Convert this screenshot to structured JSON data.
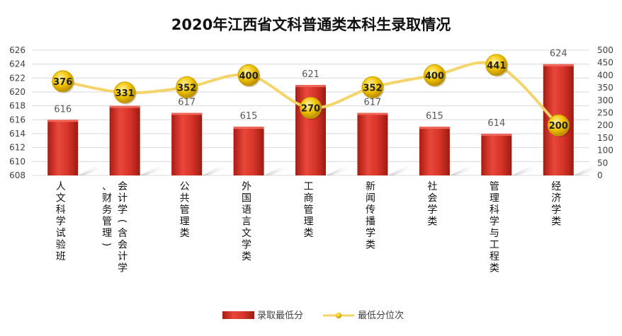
{
  "chart_data": {
    "type": "bar",
    "title": "2020年江西省文科普通类本科生录取情况",
    "categories": [
      "人文科学试验班",
      "会计学（含会计学、财务管理）",
      "公共管理类",
      "外国语言文学类",
      "工商管理类",
      "新闻传播学类",
      "社会学类",
      "管理科学与工程类",
      "经济学类"
    ],
    "series": [
      {
        "name": "录取最低分",
        "type": "bar",
        "axis": "left",
        "values": [
          616,
          618,
          617,
          615,
          621,
          617,
          615,
          614,
          624
        ]
      },
      {
        "name": "最低分位次",
        "type": "line",
        "axis": "right",
        "values": [
          376,
          331,
          352,
          400,
          270,
          352,
          400,
          441,
          200
        ]
      }
    ],
    "y_left": {
      "min": 608,
      "max": 626,
      "step": 2
    },
    "y_right": {
      "min": 0,
      "max": 500,
      "step": 50
    },
    "legend_position": "bottom",
    "grid": true,
    "colors": {
      "bar": "#d8352a",
      "line": "#f3d56b",
      "marker": "#f2c300",
      "text": "#595959",
      "grid": "#d9d9d9"
    }
  }
}
